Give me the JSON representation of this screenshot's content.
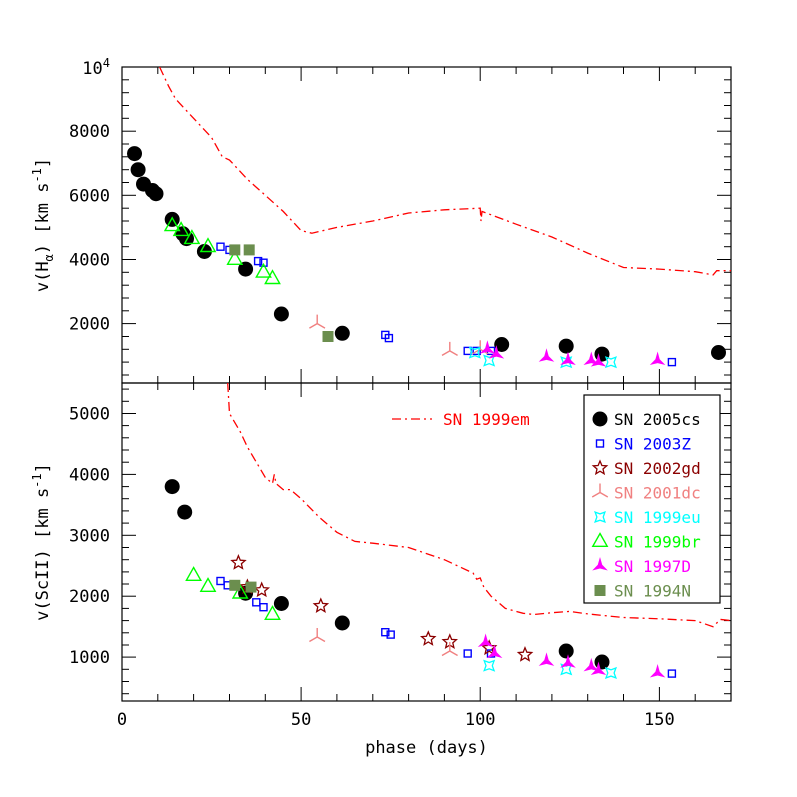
{
  "chart_data": [
    {
      "type": "scatter",
      "panel": "top",
      "ylabel": "v(Hα) [km s⁻¹]",
      "ylabel_main": "v(H",
      "ylabel_sub": "α",
      "ylabel_rest": ") [km s",
      "ylabel_sup": "-1",
      "ylabel_end": "]",
      "xlim": [
        0,
        170
      ],
      "ylim": [
        150,
        10000
      ],
      "yticks": [
        2000,
        4000,
        6000,
        8000
      ],
      "ytick_top_base": "10",
      "ytick_top_exp": "4",
      "series": [
        {
          "name": "SN 1999em",
          "marker": "dashdot",
          "color": "#ff0000",
          "points": [
            [
              10.5,
              10000
            ],
            [
              13,
              9400
            ],
            [
              15,
              9000
            ],
            [
              20,
              8400
            ],
            [
              25,
              7800
            ],
            [
              28,
              7200
            ],
            [
              30,
              7100
            ],
            [
              35,
              6500
            ],
            [
              40,
              6000
            ],
            [
              45,
              5500
            ],
            [
              50,
              4900
            ],
            [
              53,
              4820
            ],
            [
              60,
              5000
            ],
            [
              70,
              5200
            ],
            [
              80,
              5450
            ],
            [
              90,
              5550
            ],
            [
              100,
              5600
            ],
            [
              100.2,
              5200
            ],
            [
              100.5,
              5500
            ],
            [
              110,
              5100
            ],
            [
              120,
              4700
            ],
            [
              130,
              4200
            ],
            [
              140,
              3750
            ],
            [
              150,
              3700
            ],
            [
              160,
              3620
            ],
            [
              165,
              3520
            ],
            [
              166,
              3650
            ],
            [
              170,
              3650
            ]
          ]
        },
        {
          "name": "SN 2005cs",
          "marker": "filled-circle",
          "color": "#000000",
          "points": [
            [
              3.5,
              7300
            ],
            [
              4.5,
              6800
            ],
            [
              6,
              6350
            ],
            [
              8.5,
              6150
            ],
            [
              9.5,
              6050
            ],
            [
              14,
              5250
            ],
            [
              17,
              4800
            ],
            [
              18,
              4650
            ],
            [
              23,
              4250
            ],
            [
              34.5,
              3700
            ],
            [
              44.5,
              2300
            ],
            [
              61.5,
              1700
            ],
            [
              106,
              1350
            ],
            [
              124,
              1300
            ],
            [
              134,
              1050
            ],
            [
              166.5,
              1100
            ]
          ]
        },
        {
          "name": "SN 2003Z",
          "marker": "open-square",
          "color": "#0000ff",
          "points": [
            [
              27.5,
              4400
            ],
            [
              30,
              4300
            ],
            [
              38,
              3950
            ],
            [
              39.5,
              3900
            ],
            [
              73.5,
              1650
            ],
            [
              74.5,
              1550
            ],
            [
              96.5,
              1150
            ],
            [
              99,
              1150
            ],
            [
              103,
              1150
            ],
            [
              153.5,
              800
            ]
          ]
        },
        {
          "name": "SN 2001dc",
          "marker": "tripod",
          "color": "#f08080",
          "points": [
            [
              54.5,
              2000
            ],
            [
              91.5,
              1150
            ],
            [
              100,
              1200
            ]
          ]
        },
        {
          "name": "SN 1999eu",
          "marker": "star4",
          "color": "#00ffff",
          "points": [
            [
              98.5,
              1100
            ],
            [
              102.5,
              850
            ],
            [
              124,
              800
            ],
            [
              136.5,
              800
            ]
          ]
        },
        {
          "name": "SN 1999br",
          "marker": "open-triangle",
          "color": "#00ff00",
          "points": [
            [
              14,
              5050
            ],
            [
              16.5,
              4900
            ],
            [
              19.5,
              4650
            ],
            [
              24,
              4400
            ],
            [
              31.5,
              4000
            ],
            [
              39.5,
              3600
            ],
            [
              42,
              3400
            ]
          ]
        },
        {
          "name": "SN 1997D",
          "marker": "filled-tripod",
          "color": "#ff00ff",
          "points": [
            [
              102,
              1200
            ],
            [
              104.5,
              1050
            ],
            [
              118.5,
              950
            ],
            [
              124.5,
              850
            ],
            [
              131,
              850
            ],
            [
              133,
              800
            ],
            [
              149.5,
              850
            ]
          ]
        },
        {
          "name": "SN 1994N",
          "marker": "filled-square",
          "color": "#6b8e4e",
          "points": [
            [
              31.5,
              4300
            ],
            [
              35.5,
              4300
            ],
            [
              57.5,
              1600
            ]
          ]
        }
      ]
    },
    {
      "type": "scatter",
      "panel": "bottom",
      "xlabel": "phase (days)",
      "ylabel": "v(ScII) [km s⁻¹]",
      "ylabel_main": "v(ScII) [km s",
      "ylabel_sup": "-1",
      "ylabel_end": "]",
      "xlim": [
        0,
        170
      ],
      "ylim": [
        280,
        5500
      ],
      "xticks": [
        0,
        50,
        100,
        150
      ],
      "yticks": [
        1000,
        2000,
        3000,
        4000,
        5000
      ],
      "series": [
        {
          "name": "SN 1999em",
          "marker": "dashdot",
          "color": "#ff0000",
          "points": [
            [
              29.5,
              5500
            ],
            [
              30,
              5000
            ],
            [
              31,
              4900
            ],
            [
              33,
              4700
            ],
            [
              35,
              4450
            ],
            [
              38,
              4150
            ],
            [
              40,
              3950
            ],
            [
              42,
              3850
            ],
            [
              42.5,
              4000
            ],
            [
              43,
              3850
            ],
            [
              45,
              3750
            ],
            [
              47,
              3750
            ],
            [
              50,
              3600
            ],
            [
              55,
              3300
            ],
            [
              60,
              3050
            ],
            [
              65,
              2900
            ],
            [
              70,
              2870
            ],
            [
              80,
              2800
            ],
            [
              90,
              2600
            ],
            [
              98,
              2380
            ],
            [
              99,
              2280
            ],
            [
              100,
              2300
            ],
            [
              101,
              2150
            ],
            [
              103,
              2000
            ],
            [
              107,
              1800
            ],
            [
              112,
              1720
            ],
            [
              115,
              1700
            ],
            [
              120,
              1730
            ],
            [
              125,
              1750
            ],
            [
              130,
              1710
            ],
            [
              140,
              1650
            ],
            [
              150,
              1630
            ],
            [
              160,
              1600
            ],
            [
              165,
              1500
            ],
            [
              167,
              1620
            ],
            [
              170,
              1600
            ]
          ]
        },
        {
          "name": "SN 2005cs",
          "marker": "filled-circle",
          "color": "#000000",
          "points": [
            [
              14,
              3800
            ],
            [
              17.5,
              3380
            ],
            [
              34.5,
              2050
            ],
            [
              44.5,
              1880
            ],
            [
              61.5,
              1560
            ],
            [
              124,
              1100
            ],
            [
              134,
              920
            ]
          ]
        },
        {
          "name": "SN 2003Z",
          "marker": "open-square",
          "color": "#0000ff",
          "points": [
            [
              27.5,
              2250
            ],
            [
              29.5,
              2180
            ],
            [
              37.5,
              1900
            ],
            [
              39.5,
              1820
            ],
            [
              73.5,
              1410
            ],
            [
              75,
              1370
            ],
            [
              96.5,
              1060
            ],
            [
              103,
              1060
            ],
            [
              153.5,
              730
            ]
          ]
        },
        {
          "name": "SN 2002gd",
          "marker": "open-star",
          "color": "#8b0000",
          "points": [
            [
              32.5,
              2550
            ],
            [
              35,
              2150
            ],
            [
              39,
              2100
            ],
            [
              55.5,
              1840
            ],
            [
              85.5,
              1300
            ],
            [
              91.5,
              1250
            ],
            [
              102.5,
              1150
            ],
            [
              112.5,
              1040
            ]
          ]
        },
        {
          "name": "SN 2001dc",
          "marker": "tripod",
          "color": "#f08080",
          "points": [
            [
              54.5,
              1330
            ],
            [
              91.5,
              1100
            ]
          ]
        },
        {
          "name": "SN 1999eu",
          "marker": "star4",
          "color": "#00ffff",
          "points": [
            [
              102.5,
              860
            ],
            [
              124,
              800
            ],
            [
              136.5,
              740
            ]
          ]
        },
        {
          "name": "SN 1999br",
          "marker": "open-triangle",
          "color": "#00ff00",
          "points": [
            [
              20,
              2340
            ],
            [
              24,
              2160
            ],
            [
              33,
              2050
            ],
            [
              42,
              1700
            ]
          ]
        },
        {
          "name": "SN 1997D",
          "marker": "filled-tripod",
          "color": "#ff00ff",
          "points": [
            [
              101.5,
              1240
            ],
            [
              104,
              1060
            ],
            [
              118.5,
              930
            ],
            [
              124.5,
              900
            ],
            [
              131,
              840
            ],
            [
              133,
              780
            ],
            [
              149.5,
              740
            ]
          ]
        },
        {
          "name": "SN 1994N",
          "marker": "filled-square",
          "color": "#6b8e4e",
          "points": [
            [
              31.5,
              2180
            ],
            [
              36,
              2150
            ]
          ]
        }
      ]
    }
  ],
  "legend": {
    "line_entry": {
      "label": "SN 1999em",
      "color": "#ff0000"
    },
    "boxed_entries": [
      {
        "label": "SN 2005cs",
        "marker": "filled-circle",
        "color": "#000000"
      },
      {
        "label": "SN 2003Z",
        "marker": "open-square",
        "color": "#0000ff"
      },
      {
        "label": "SN 2002gd",
        "marker": "open-star",
        "color": "#8b0000"
      },
      {
        "label": "SN 2001dc",
        "marker": "tripod",
        "color": "#f08080"
      },
      {
        "label": "SN 1999eu",
        "marker": "star4",
        "color": "#00ffff"
      },
      {
        "label": "SN 1999br",
        "marker": "open-triangle",
        "color": "#00ff00"
      },
      {
        "label": "SN 1997D",
        "marker": "filled-tripod",
        "color": "#ff00ff"
      },
      {
        "label": "SN 1994N",
        "marker": "filled-square",
        "color": "#6b8e4e"
      }
    ]
  }
}
